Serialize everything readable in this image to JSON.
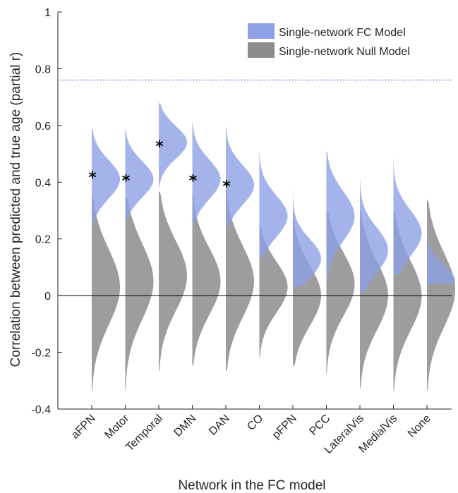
{
  "colors": {
    "fc_model": "#8ea0e6",
    "null_model": "#8c8c8c",
    "reference_line": "#3f51c8",
    "axis": "#262626"
  },
  "chart_data": {
    "type": "area",
    "subtype": "split-violin",
    "xlabel": "Network in the FC model",
    "ylabel": "Correlation between predicted and true age (partial r)",
    "ylim": [
      -0.4,
      1
    ],
    "yticks": [
      -0.4,
      -0.2,
      0,
      0.2,
      0.4,
      0.6,
      0.8,
      1
    ],
    "ytick_labels": [
      "-0.4",
      "-0.2",
      "0",
      "0.2",
      "0.4",
      "0.6",
      "0.8",
      "1"
    ],
    "categories": [
      "aFPN",
      "Motor",
      "Temporal",
      "DMN",
      "DAN",
      "CO",
      "pFPN",
      "PCC",
      "LateralVis",
      "MedialVis",
      "None"
    ],
    "reference_line": {
      "y": 0.76,
      "style": "dotted"
    },
    "zero_line": 0,
    "grid": false,
    "legend": {
      "placement": "top-right",
      "entries": [
        "Single-network FC Model",
        "Single-network Null Model"
      ]
    },
    "series": [
      {
        "name": "Single-network FC Model",
        "side": "right",
        "distributions": [
          {
            "min": 0.24,
            "max": 0.59,
            "peak": 0.41
          },
          {
            "min": 0.26,
            "max": 0.59,
            "peak": 0.41
          },
          {
            "min": 0.38,
            "max": 0.68,
            "peak": 0.54
          },
          {
            "min": 0.25,
            "max": 0.61,
            "peak": 0.41
          },
          {
            "min": 0.24,
            "max": 0.6,
            "peak": 0.39
          },
          {
            "min": 0.13,
            "max": 0.51,
            "peak": 0.28
          },
          {
            "min": 0.03,
            "max": 0.39,
            "peak": 0.13
          },
          {
            "min": 0.06,
            "max": 0.51,
            "peak": 0.28
          },
          {
            "min": 0.01,
            "max": 0.42,
            "peak": 0.16
          },
          {
            "min": 0.07,
            "max": 0.49,
            "peak": 0.22
          },
          {
            "min": 0.04,
            "max": 0.34,
            "peak": 0.05
          }
        ]
      },
      {
        "name": "Single-network Null Model",
        "side": "left",
        "distributions": [
          {
            "min": -0.34,
            "max": 0.35,
            "peak": 0.03
          },
          {
            "min": -0.34,
            "max": 0.35,
            "peak": 0.05
          },
          {
            "min": -0.27,
            "max": 0.37,
            "peak": 0.07
          },
          {
            "min": -0.25,
            "max": 0.36,
            "peak": 0.05
          },
          {
            "min": -0.27,
            "max": 0.38,
            "peak": 0.05
          },
          {
            "min": -0.22,
            "max": 0.25,
            "peak": 0.03
          },
          {
            "min": -0.25,
            "max": 0.3,
            "peak": 0.0
          },
          {
            "min": -0.28,
            "max": 0.3,
            "peak": 0.04
          },
          {
            "min": -0.33,
            "max": 0.3,
            "peak": 0.0
          },
          {
            "min": -0.34,
            "max": 0.3,
            "peak": 0.0
          },
          {
            "min": -0.34,
            "max": 0.34,
            "peak": 0.02
          }
        ]
      }
    ],
    "significance_markers": [
      {
        "category": "aFPN",
        "y": 0.42,
        "label": "*"
      },
      {
        "category": "Motor",
        "y": 0.41,
        "label": "*"
      },
      {
        "category": "Temporal",
        "y": 0.53,
        "label": "*"
      },
      {
        "category": "DMN",
        "y": 0.41,
        "label": "*"
      },
      {
        "category": "DAN",
        "y": 0.39,
        "label": "*"
      }
    ]
  }
}
